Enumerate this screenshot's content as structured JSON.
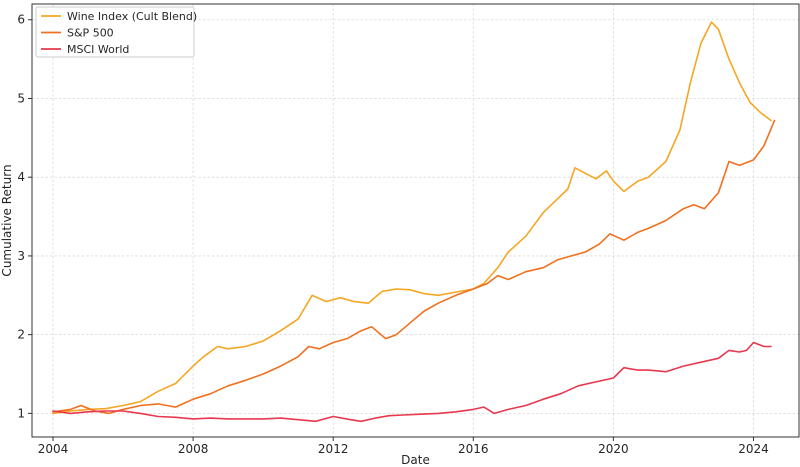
{
  "chart_data": {
    "type": "line",
    "title": "",
    "xlabel": "Date",
    "ylabel": "Cumulative Return",
    "xlim": [
      2003.4,
      2025.3
    ],
    "ylim": [
      0.7,
      6.2
    ],
    "x_ticks": [
      2004,
      2008,
      2012,
      2016,
      2020,
      2024
    ],
    "x_tick_labels": [
      "2004",
      "2008",
      "2012",
      "2016",
      "2020",
      "2024"
    ],
    "y_ticks": [
      1,
      2,
      3,
      4,
      5,
      6
    ],
    "y_tick_labels": [
      "1",
      "2",
      "3",
      "4",
      "5",
      "6"
    ],
    "grid": true,
    "legend_position": "top-left",
    "series": [
      {
        "name": "Wine Index (Cult Blend)",
        "color": "#f5a623",
        "x": [
          2004.0,
          2004.5,
          2005.0,
          2005.5,
          2006.0,
          2006.5,
          2007.0,
          2007.5,
          2008.0,
          2008.3,
          2008.7,
          2009.0,
          2009.5,
          2010.0,
          2010.5,
          2011.0,
          2011.4,
          2011.8,
          2012.2,
          2012.6,
          2013.0,
          2013.4,
          2013.8,
          2014.2,
          2014.6,
          2015.0,
          2015.5,
          2016.0,
          2016.3,
          2016.7,
          2017.0,
          2017.5,
          2018.0,
          2018.3,
          2018.7,
          2018.9,
          2019.2,
          2019.5,
          2019.8,
          2020.0,
          2020.3,
          2020.7,
          2021.0,
          2021.5,
          2021.9,
          2022.2,
          2022.5,
          2022.8,
          2023.0,
          2023.3,
          2023.6,
          2023.9,
          2024.2,
          2024.5
        ],
        "values": [
          1.0,
          1.03,
          1.05,
          1.06,
          1.1,
          1.15,
          1.28,
          1.38,
          1.6,
          1.72,
          1.85,
          1.82,
          1.85,
          1.92,
          2.05,
          2.2,
          2.5,
          2.42,
          2.47,
          2.42,
          2.4,
          2.55,
          2.58,
          2.57,
          2.52,
          2.5,
          2.54,
          2.58,
          2.65,
          2.85,
          3.05,
          3.25,
          3.55,
          3.68,
          3.85,
          4.12,
          4.05,
          3.98,
          4.08,
          3.95,
          3.82,
          3.95,
          4.0,
          4.2,
          4.6,
          5.2,
          5.7,
          5.97,
          5.88,
          5.5,
          5.2,
          4.95,
          4.82,
          4.72
        ]
      },
      {
        "name": "S&P 500",
        "color": "#f0701e",
        "x": [
          2004.0,
          2004.5,
          2004.8,
          2005.2,
          2005.6,
          2006.0,
          2006.5,
          2007.0,
          2007.5,
          2008.0,
          2008.5,
          2009.0,
          2009.5,
          2010.0,
          2010.5,
          2011.0,
          2011.3,
          2011.6,
          2012.0,
          2012.4,
          2012.8,
          2013.1,
          2013.5,
          2013.8,
          2014.2,
          2014.6,
          2015.0,
          2015.5,
          2016.0,
          2016.4,
          2016.7,
          2017.0,
          2017.5,
          2018.0,
          2018.4,
          2018.8,
          2019.2,
          2019.6,
          2019.9,
          2020.3,
          2020.7,
          2021.0,
          2021.5,
          2022.0,
          2022.3,
          2022.6,
          2023.0,
          2023.3,
          2023.6,
          2024.0,
          2024.3,
          2024.6
        ],
        "values": [
          1.02,
          1.05,
          1.1,
          1.03,
          1.0,
          1.05,
          1.1,
          1.12,
          1.08,
          1.18,
          1.25,
          1.35,
          1.42,
          1.5,
          1.6,
          1.72,
          1.85,
          1.82,
          1.9,
          1.95,
          2.05,
          2.1,
          1.95,
          2.0,
          2.15,
          2.3,
          2.4,
          2.5,
          2.58,
          2.65,
          2.75,
          2.7,
          2.8,
          2.85,
          2.95,
          3.0,
          3.05,
          3.15,
          3.28,
          3.2,
          3.3,
          3.35,
          3.45,
          3.6,
          3.65,
          3.6,
          3.8,
          4.2,
          4.15,
          4.22,
          4.4,
          4.72
        ]
      },
      {
        "name": "MSCI World",
        "color": "#e8384f",
        "x": [
          2004.0,
          2004.5,
          2005.0,
          2005.5,
          2006.0,
          2006.5,
          2007.0,
          2007.5,
          2008.0,
          2008.5,
          2009.0,
          2009.5,
          2010.0,
          2010.5,
          2011.0,
          2011.5,
          2012.0,
          2012.5,
          2012.8,
          2013.2,
          2013.6,
          2014.0,
          2014.5,
          2015.0,
          2015.5,
          2016.0,
          2016.3,
          2016.6,
          2017.0,
          2017.5,
          2018.0,
          2018.5,
          2019.0,
          2019.5,
          2020.0,
          2020.3,
          2020.7,
          2021.0,
          2021.5,
          2022.0,
          2022.5,
          2023.0,
          2023.3,
          2023.6,
          2023.8,
          2024.0,
          2024.3,
          2024.5
        ],
        "values": [
          1.03,
          1.0,
          1.02,
          1.03,
          1.03,
          1.0,
          0.96,
          0.95,
          0.93,
          0.94,
          0.93,
          0.93,
          0.93,
          0.94,
          0.92,
          0.9,
          0.96,
          0.92,
          0.9,
          0.94,
          0.97,
          0.98,
          0.99,
          1.0,
          1.02,
          1.05,
          1.08,
          1.0,
          1.05,
          1.1,
          1.18,
          1.25,
          1.35,
          1.4,
          1.45,
          1.58,
          1.55,
          1.55,
          1.53,
          1.6,
          1.65,
          1.7,
          1.8,
          1.78,
          1.8,
          1.9,
          1.85,
          1.85
        ]
      }
    ]
  }
}
